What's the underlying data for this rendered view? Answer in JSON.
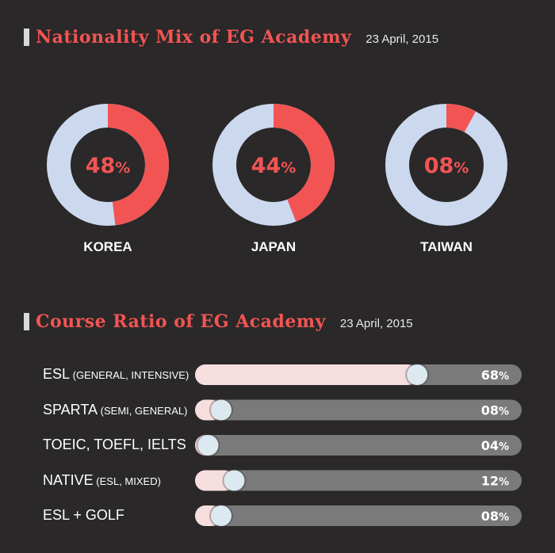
{
  "nationality": {
    "title": "Nationality Mix of EG Academy",
    "date": "23 April, 2015"
  },
  "course": {
    "title": "Course Ratio of EG Academy",
    "date": "23 April, 2015"
  },
  "colors": {
    "background": "#2a2828",
    "accent": "#f25454",
    "donut_track": "#ccd8ee",
    "bar_fill": "#f7dede",
    "bar_track": "#7a7a7a",
    "knob": "#dde9f0"
  },
  "chart_data": [
    {
      "type": "pie",
      "subtype": "donut",
      "title": "Nationality Mix of EG Academy",
      "categories": [
        "KOREA",
        "JAPAN",
        "TAIWAN"
      ],
      "values": [
        48,
        44,
        8
      ],
      "value_labels": [
        "48",
        "44",
        "08"
      ],
      "unit": "%"
    },
    {
      "type": "bar",
      "orientation": "horizontal",
      "title": "Course Ratio of EG Academy",
      "categories": [
        "ESL",
        "SPARTA",
        "TOEIC, TOEFL, IELTS",
        "NATIVE",
        "ESL + GOLF"
      ],
      "category_notes": [
        "(GENERAL, INTENSIVE)",
        "(SEMI, GENERAL)",
        "",
        "(ESL, MIXED)",
        ""
      ],
      "values": [
        68,
        8,
        4,
        12,
        8
      ],
      "value_labels": [
        "68",
        "08",
        "04",
        "12",
        "08"
      ],
      "unit": "%",
      "xlim": [
        0,
        100
      ]
    }
  ]
}
